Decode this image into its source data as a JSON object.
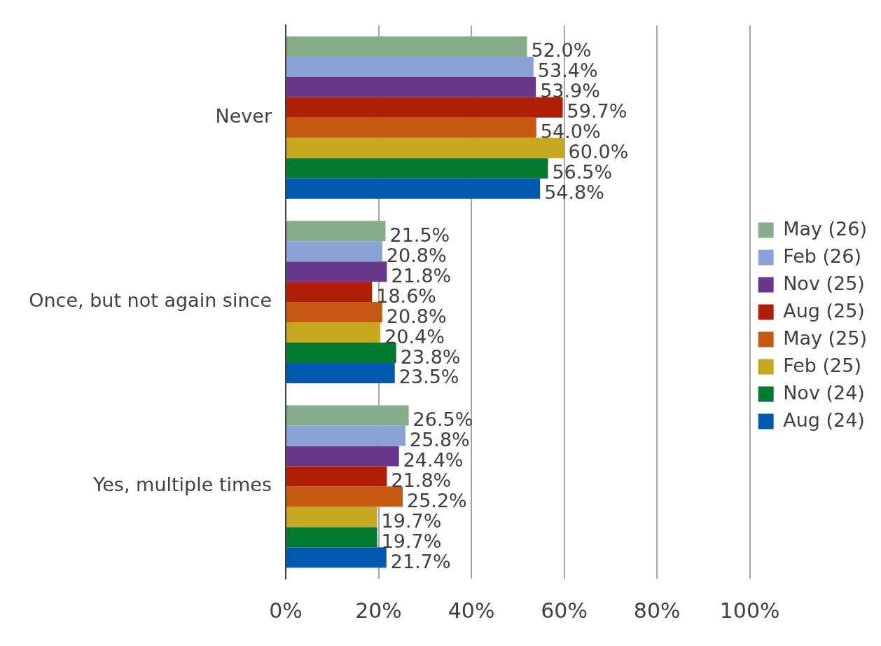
{
  "chart_data": {
    "type": "bar",
    "orientation": "horizontal",
    "categories": [
      "Never",
      "Once, but not again since",
      "Yes, multiple times"
    ],
    "xlim": [
      0,
      100
    ],
    "xticks": [
      {
        "value": 0,
        "label": "0%"
      },
      {
        "value": 20,
        "label": "20%"
      },
      {
        "value": 40,
        "label": "40%"
      },
      {
        "value": 60,
        "label": "60%"
      },
      {
        "value": 80,
        "label": "80%"
      },
      {
        "value": 100,
        "label": "100%"
      }
    ],
    "grid": "x",
    "legend": "right",
    "series": [
      {
        "name": "May (26)",
        "color": "#86ad8a",
        "values": [
          52.0,
          21.5,
          26.5
        ],
        "value_labels": [
          "52.0%",
          "21.5%",
          "26.5%"
        ]
      },
      {
        "name": "Feb (26)",
        "color": "#8aa2d6",
        "values": [
          53.4,
          20.8,
          25.8
        ],
        "value_labels": [
          "53.4%",
          "20.8%",
          "25.8%"
        ]
      },
      {
        "name": "Nov (25)",
        "color": "#67388b",
        "values": [
          53.9,
          21.8,
          24.4
        ],
        "value_labels": [
          "53.9%",
          "21.8%",
          "24.4%"
        ]
      },
      {
        "name": "Aug (25)",
        "color": "#b01e05",
        "values": [
          59.7,
          18.6,
          21.8
        ],
        "value_labels": [
          "59.7%",
          "18.6%",
          "21.8%"
        ]
      },
      {
        "name": "May (25)",
        "color": "#c65a10",
        "values": [
          54.0,
          20.8,
          25.2
        ],
        "value_labels": [
          "54.0%",
          "20.8%",
          "25.2%"
        ]
      },
      {
        "name": "Feb (25)",
        "color": "#c8a821",
        "values": [
          60.0,
          20.4,
          19.7
        ],
        "value_labels": [
          "60.0%",
          "20.4%",
          "19.7%"
        ]
      },
      {
        "name": "Nov (24)",
        "color": "#007a2e",
        "values": [
          56.5,
          23.8,
          19.7
        ],
        "value_labels": [
          "56.5%",
          "23.8%",
          "19.7%"
        ]
      },
      {
        "name": "Aug (24)",
        "color": "#0359ad",
        "values": [
          54.8,
          23.5,
          21.7
        ],
        "value_labels": [
          "54.8%",
          "23.5%",
          "21.7%"
        ]
      }
    ]
  }
}
